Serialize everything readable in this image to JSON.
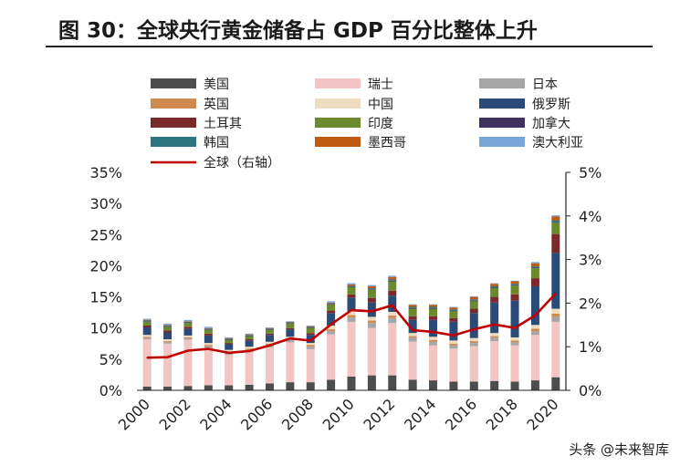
{
  "figure_title": "图 30：全球央行黄金储备占 GDP 百分比整体上升",
  "watermark": "头条 @未来智库",
  "chart_data": {
    "type": "bar",
    "stacked": true,
    "title": "图 30：全球央行黄金储备占 GDP 百分比整体上升",
    "categories": [
      "2000",
      "2001",
      "2002",
      "2003",
      "2004",
      "2005",
      "2006",
      "2007",
      "2008",
      "2009",
      "2010",
      "2011",
      "2012",
      "2013",
      "2014",
      "2015",
      "2016",
      "2017",
      "2018",
      "2019",
      "2020"
    ],
    "x_tick_labels": [
      "2000",
      "2002",
      "2004",
      "2006",
      "2008",
      "2010",
      "2012",
      "2014",
      "2016",
      "2018",
      "2020"
    ],
    "left_axis": {
      "ylim": [
        0,
        35
      ],
      "ticks": [
        "0%",
        "5%",
        "10%",
        "15%",
        "20%",
        "25%",
        "30%",
        "35%"
      ]
    },
    "right_axis": {
      "ylim": [
        0,
        5
      ],
      "ticks": [
        "0%",
        "1%",
        "2%",
        "3%",
        "4%",
        "5%"
      ]
    },
    "series": [
      {
        "name": "美国",
        "color": "#4d4d4d",
        "values": [
          0.6,
          0.6,
          0.7,
          0.8,
          0.8,
          0.9,
          1.1,
          1.3,
          1.3,
          1.7,
          2.2,
          2.4,
          2.4,
          1.7,
          1.6,
          1.4,
          1.4,
          1.5,
          1.4,
          1.6,
          2.1
        ]
      },
      {
        "name": "瑞士",
        "color": "#f2c4c4",
        "values": [
          7.6,
          6.9,
          7.4,
          6.0,
          4.9,
          5.3,
          5.8,
          6.4,
          5.3,
          7.3,
          8.8,
          7.6,
          8.4,
          6.1,
          5.6,
          5.3,
          5.7,
          6.4,
          5.8,
          7.3,
          8.9
        ]
      },
      {
        "name": "日本",
        "color": "#a6a6a6",
        "values": [
          0.2,
          0.2,
          0.2,
          0.3,
          0.3,
          0.3,
          0.4,
          0.4,
          0.4,
          0.5,
          0.7,
          0.8,
          0.8,
          0.6,
          0.6,
          0.5,
          0.5,
          0.5,
          0.5,
          0.6,
          0.8
        ]
      },
      {
        "name": "英国",
        "color": "#d08a50",
        "values": [
          0.2,
          0.2,
          0.2,
          0.2,
          0.2,
          0.2,
          0.2,
          0.2,
          0.3,
          0.3,
          0.4,
          0.4,
          0.4,
          0.3,
          0.3,
          0.3,
          0.3,
          0.3,
          0.3,
          0.4,
          0.5
        ]
      },
      {
        "name": "中国",
        "color": "#eddcbf",
        "values": [
          0.3,
          0.3,
          0.3,
          0.3,
          0.3,
          0.3,
          0.3,
          0.3,
          0.3,
          0.6,
          0.6,
          0.6,
          0.6,
          0.5,
          0.5,
          0.5,
          0.5,
          0.5,
          0.5,
          0.6,
          0.8
        ]
      },
      {
        "name": "俄罗斯",
        "color": "#2a4a78",
        "values": [
          1.2,
          1.1,
          1.1,
          1.2,
          0.9,
          1.0,
          1.1,
          1.2,
          1.3,
          2.0,
          2.2,
          2.3,
          2.6,
          2.1,
          2.7,
          3.0,
          4.0,
          4.9,
          5.9,
          6.2,
          9.0
        ]
      },
      {
        "name": "土耳其",
        "color": "#7a2a2a",
        "values": [
          0.3,
          0.3,
          0.3,
          0.3,
          0.2,
          0.2,
          0.2,
          0.2,
          0.3,
          0.4,
          0.5,
          0.7,
          0.8,
          0.6,
          0.6,
          0.6,
          0.7,
          0.9,
          1.0,
          1.3,
          3.0
        ]
      },
      {
        "name": "印度",
        "color": "#6b8a2e",
        "values": [
          0.6,
          0.6,
          0.6,
          0.6,
          0.5,
          0.5,
          0.6,
          0.7,
          0.8,
          1.0,
          1.2,
          1.4,
          1.5,
          1.2,
          1.2,
          1.1,
          1.2,
          1.4,
          1.4,
          1.6,
          1.8
        ]
      },
      {
        "name": "加拿大",
        "color": "#3e3160",
        "values": [
          0.1,
          0.1,
          0.1,
          0.1,
          0.1,
          0.1,
          0.1,
          0.1,
          0.1,
          0.1,
          0.1,
          0.1,
          0.1,
          0.1,
          0.1,
          0.1,
          0.1,
          0.1,
          0.1,
          0.1,
          0.1
        ]
      },
      {
        "name": "韩国",
        "color": "#2e7580",
        "values": [
          0.1,
          0.1,
          0.1,
          0.1,
          0.1,
          0.1,
          0.1,
          0.1,
          0.1,
          0.1,
          0.1,
          0.1,
          0.2,
          0.2,
          0.2,
          0.2,
          0.2,
          0.2,
          0.2,
          0.2,
          0.3
        ]
      },
      {
        "name": "墨西哥",
        "color": "#c05a10",
        "values": [
          0.1,
          0.1,
          0.1,
          0.1,
          0.1,
          0.1,
          0.1,
          0.1,
          0.1,
          0.1,
          0.2,
          0.3,
          0.4,
          0.3,
          0.3,
          0.3,
          0.4,
          0.4,
          0.4,
          0.5,
          0.6
        ]
      },
      {
        "name": "澳大利亚",
        "color": "#7aa5d8",
        "values": [
          0.2,
          0.2,
          0.2,
          0.2,
          0.1,
          0.1,
          0.1,
          0.1,
          0.1,
          0.2,
          0.2,
          0.2,
          0.2,
          0.1,
          0.1,
          0.1,
          0.1,
          0.1,
          0.1,
          0.2,
          0.2
        ]
      }
    ],
    "line_series": {
      "name": "全球（右轴）",
      "color": "#c00000",
      "axis": "right",
      "values": [
        0.75,
        0.76,
        0.91,
        0.95,
        0.86,
        0.9,
        1.03,
        1.19,
        1.14,
        1.51,
        1.84,
        1.81,
        1.95,
        1.38,
        1.34,
        1.26,
        1.4,
        1.51,
        1.43,
        1.72,
        2.22
      ]
    },
    "legend": {
      "placement": "top",
      "entries": [
        "美国",
        "瑞士",
        "日本",
        "英国",
        "中国",
        "俄罗斯",
        "土耳其",
        "印度",
        "加拿大",
        "韩国",
        "墨西哥",
        "澳大利亚",
        "全球（右轴）"
      ]
    }
  }
}
